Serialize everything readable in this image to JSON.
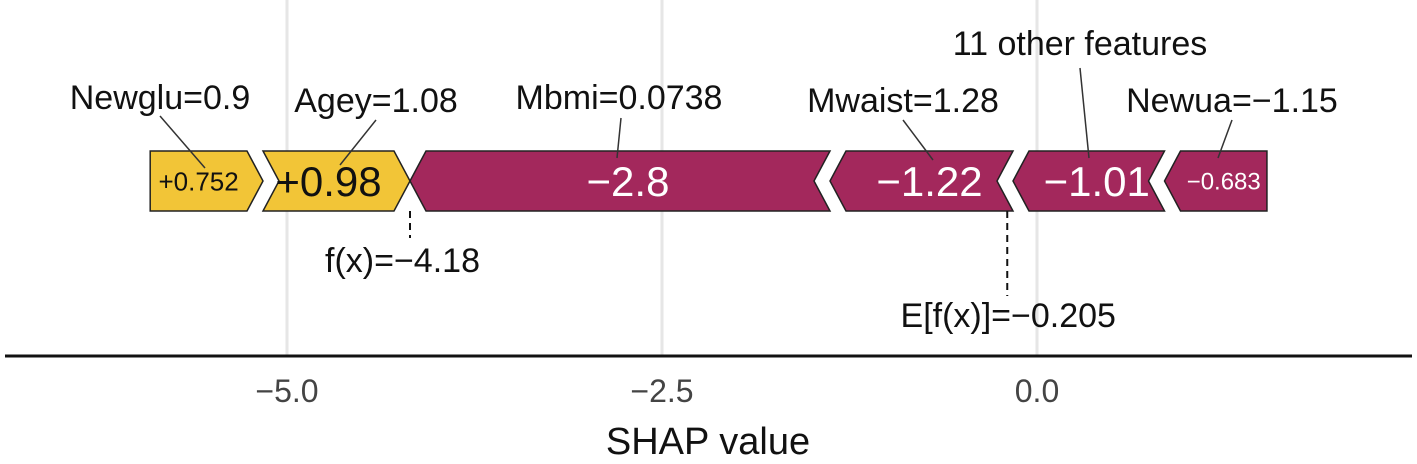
{
  "chart_data": {
    "type": "force",
    "xlabel": "SHAP value",
    "xlim": [
      -7.5,
      1.9
    ],
    "xticks": [
      -5.0,
      -2.5,
      0.0
    ],
    "xtick_labels": [
      "−5.0",
      "−2.5",
      "0.0"
    ],
    "grid": true,
    "colors": {
      "positive": "#f2c537",
      "negative": "#a3285c"
    },
    "fx": {
      "value": -4.18,
      "label": "f(x)=−4.18"
    },
    "base": {
      "value": -0.205,
      "label": "E[f(x)]=−0.205"
    },
    "segments": [
      {
        "feature": "Newglu=0.9",
        "value": 0.752,
        "label": "+0.752",
        "start": -5.912,
        "end": -5.16
      },
      {
        "feature": "Agey=1.08",
        "value": 0.98,
        "label": "+0.98",
        "start": -5.16,
        "end": -4.18
      },
      {
        "feature": "Mbmi=0.0738",
        "value": -2.8,
        "label": "−2.8",
        "start": -4.18,
        "end": -1.38
      },
      {
        "feature": "Mwaist=1.28",
        "value": -1.22,
        "label": "−1.22",
        "start": -1.38,
        "end": -0.16
      },
      {
        "feature": "11 other features",
        "value": -1.01,
        "label": "−1.01",
        "start": -0.16,
        "end": 0.85
      },
      {
        "feature": "Newua=−1.15",
        "value": -0.683,
        "label": "−0.683",
        "start": 0.85,
        "end": 1.533
      }
    ]
  }
}
